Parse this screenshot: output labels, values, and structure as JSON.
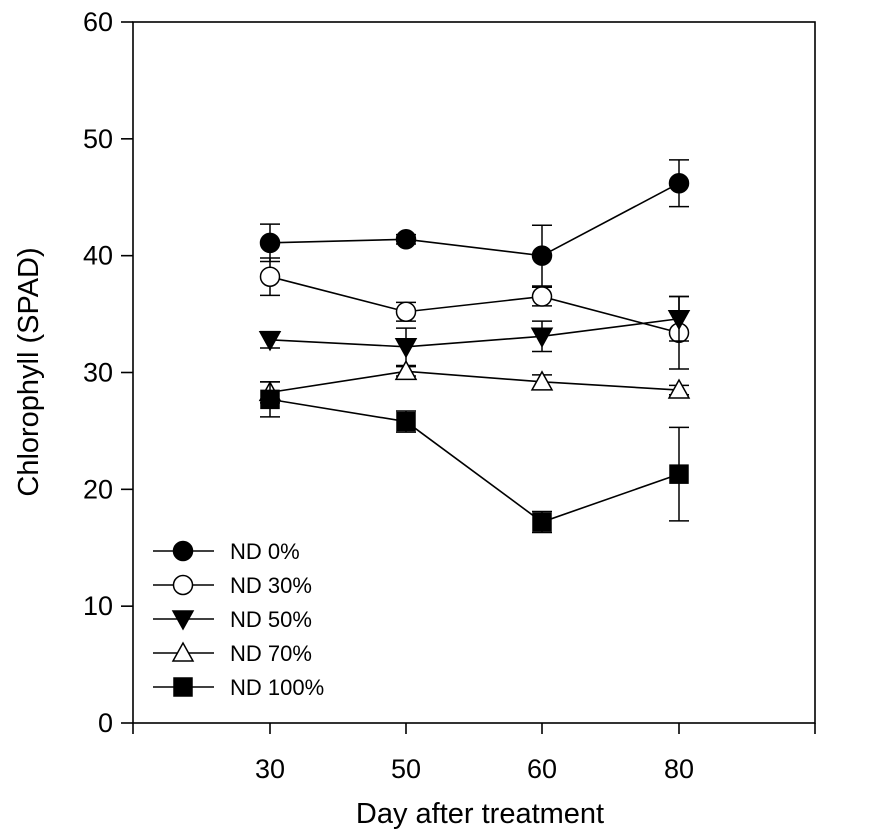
{
  "chart_data": {
    "type": "line",
    "title": "",
    "xlabel": "Day after treatment",
    "ylabel": "Chlorophyll (SPAD)",
    "categories": [
      "30",
      "50",
      "60",
      "80"
    ],
    "ylim": [
      0,
      60
    ],
    "yticks": [
      0,
      10,
      20,
      30,
      40,
      50,
      60
    ],
    "grid": false,
    "legend_position": "bottom-left",
    "series": [
      {
        "name": "ND 0%",
        "marker": "circle",
        "filled": true,
        "values": [
          41.1,
          41.4,
          40.0,
          46.2
        ],
        "errors": [
          1.6,
          0.4,
          2.6,
          2.0
        ]
      },
      {
        "name": "ND 30%",
        "marker": "circle",
        "filled": false,
        "values": [
          38.2,
          35.2,
          36.5,
          33.4
        ],
        "errors": [
          1.6,
          0.8,
          0.8,
          3.1
        ]
      },
      {
        "name": "ND 50%",
        "marker": "triangle-down",
        "filled": true,
        "values": [
          32.8,
          32.2,
          33.1,
          34.6
        ],
        "errors": [
          0.7,
          1.6,
          1.3,
          1.9
        ]
      },
      {
        "name": "ND 70%",
        "marker": "triangle-up",
        "filled": false,
        "values": [
          28.3,
          30.1,
          29.2,
          28.5
        ],
        "errors": [
          0.9,
          0.4,
          0.6,
          0.4
        ]
      },
      {
        "name": "ND 100%",
        "marker": "square",
        "filled": true,
        "values": [
          27.7,
          25.8,
          17.2,
          21.3
        ],
        "errors": [
          1.5,
          0.9,
          0.9,
          4.0
        ]
      }
    ]
  }
}
